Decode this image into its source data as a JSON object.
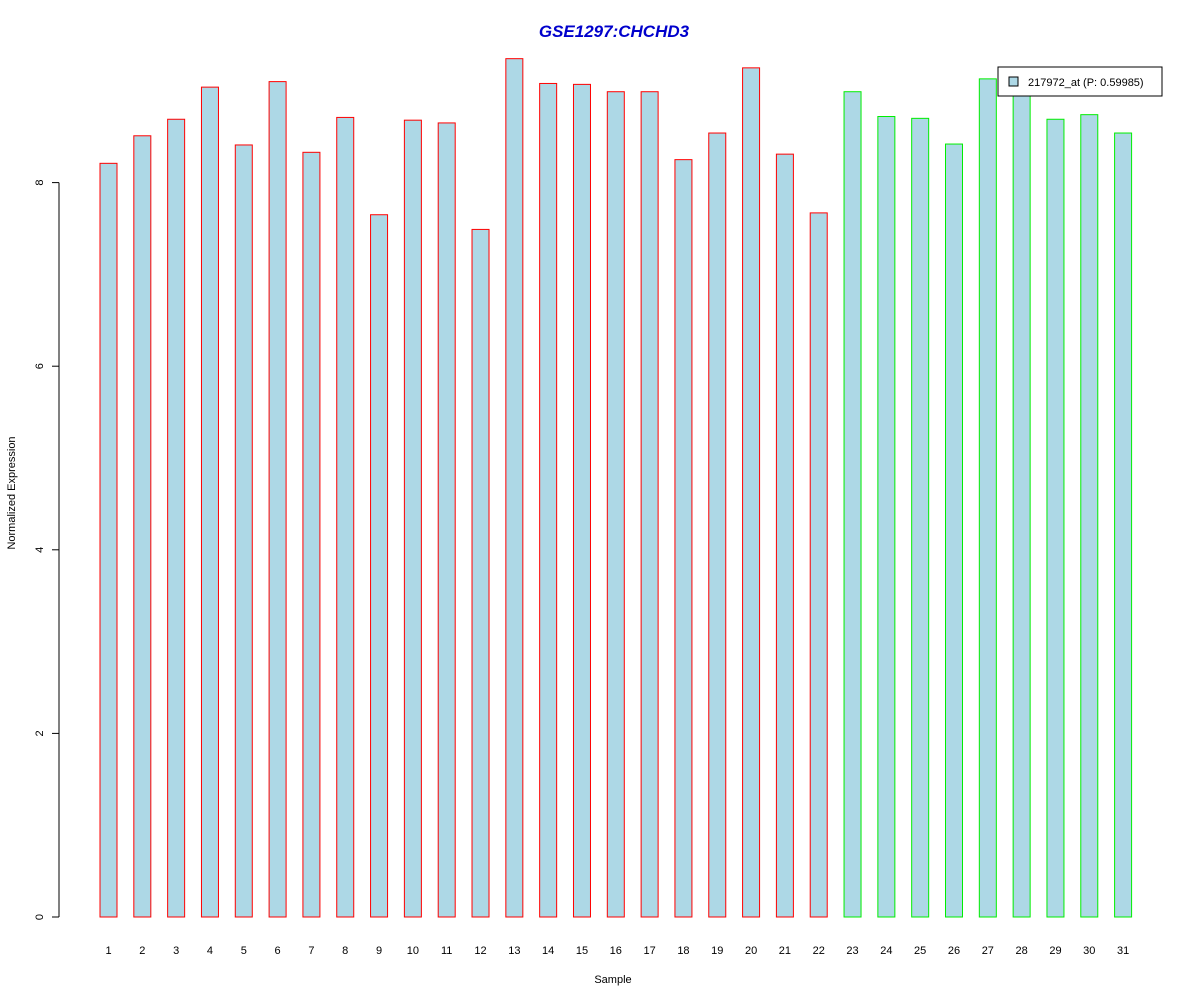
{
  "chart_data": {
    "type": "bar",
    "title": "GSE1297:CHCHD3",
    "xlabel": "Sample",
    "ylabel": "Normalized Expression",
    "categories": [
      "1",
      "2",
      "3",
      "4",
      "5",
      "6",
      "7",
      "8",
      "9",
      "10",
      "11",
      "12",
      "13",
      "14",
      "15",
      "16",
      "17",
      "18",
      "19",
      "20",
      "21",
      "22",
      "23",
      "24",
      "25",
      "26",
      "27",
      "28",
      "29",
      "30",
      "31"
    ],
    "values": [
      8.21,
      8.51,
      8.69,
      9.04,
      8.41,
      9.1,
      8.33,
      8.71,
      7.65,
      8.68,
      8.65,
      7.49,
      9.35,
      9.08,
      9.07,
      8.99,
      8.99,
      8.25,
      8.54,
      9.25,
      8.31,
      7.67,
      8.99,
      8.72,
      8.7,
      8.42,
      9.13,
      8.99,
      8.69,
      8.74,
      8.54
    ],
    "group_of_sample": [
      "red",
      "red",
      "red",
      "red",
      "red",
      "red",
      "red",
      "red",
      "red",
      "red",
      "red",
      "red",
      "red",
      "red",
      "red",
      "red",
      "red",
      "red",
      "red",
      "red",
      "red",
      "red",
      "green",
      "green",
      "green",
      "green",
      "green",
      "green",
      "green",
      "green",
      "green"
    ],
    "ylim": [
      0,
      9.6
    ],
    "yticks": [
      0,
      2,
      4,
      6,
      8
    ],
    "grid": false,
    "legend": {
      "placement": "top-right",
      "entries": [
        {
          "label": "217972_at (P: 0.59985)"
        }
      ]
    },
    "colors": {
      "title": "#0000cc",
      "bar_fill": "#add8e6",
      "border_red": "#ff0000",
      "border_green": "#00ee00",
      "axis": "#000000"
    }
  }
}
